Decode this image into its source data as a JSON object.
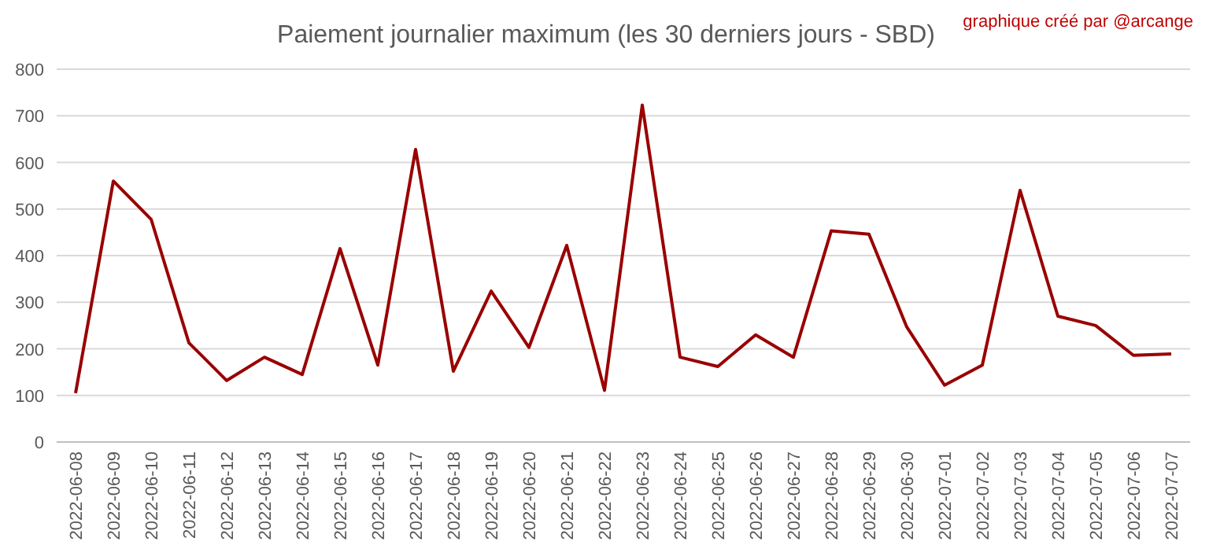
{
  "chart_data": {
    "type": "line",
    "title": "Paiement journalier maximum (les 30 derniers jours - SBD)",
    "annotations": [
      "graphique créé par @arcange"
    ],
    "categories": [
      "2022-06-08",
      "2022-06-09",
      "2022-06-10",
      "2022-06-11",
      "2022-06-12",
      "2022-06-13",
      "2022-06-14",
      "2022-06-15",
      "2022-06-16",
      "2022-06-17",
      "2022-06-18",
      "2022-06-19",
      "2022-06-20",
      "2022-06-21",
      "2022-06-22",
      "2022-06-23",
      "2022-06-24",
      "2022-06-25",
      "2022-06-26",
      "2022-06-27",
      "2022-06-28",
      "2022-06-29",
      "2022-06-30",
      "2022-07-01",
      "2022-07-02",
      "2022-07-03",
      "2022-07-04",
      "2022-07-05",
      "2022-07-06",
      "2022-07-07"
    ],
    "series": [
      {
        "color": "#990000",
        "values": [
          105,
          560,
          478,
          213,
          132,
          182,
          145,
          415,
          165,
          628,
          152,
          324,
          203,
          422,
          111,
          723,
          182,
          162,
          230,
          182,
          453,
          446,
          247,
          122,
          165,
          540,
          270,
          250,
          186,
          189
        ]
      }
    ],
    "ylim": [
      0,
      800
    ],
    "yticks": [
      0,
      100,
      200,
      300,
      400,
      500,
      600,
      700,
      800
    ],
    "grid": "y",
    "marker": "none",
    "line_style": "solid"
  }
}
